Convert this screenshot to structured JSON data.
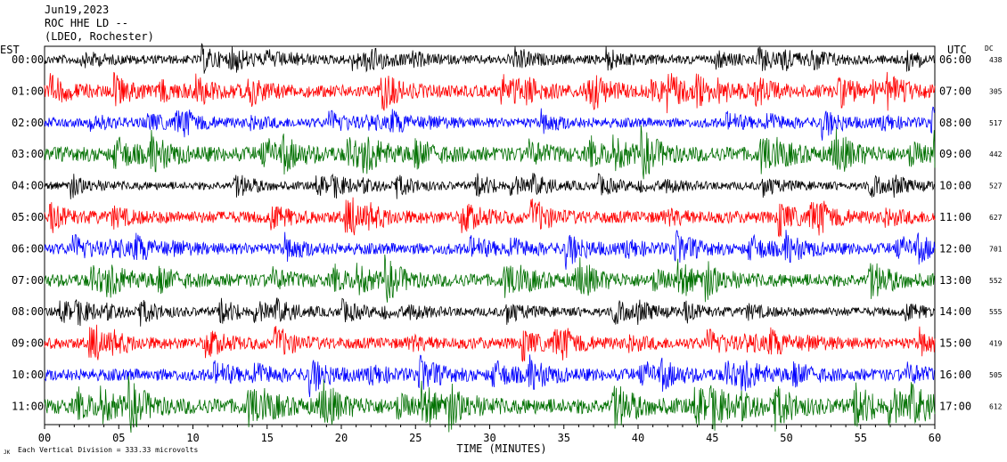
{
  "header": {
    "date": "Jun19,2023",
    "station": "ROC HHE LD --",
    "location": "(LDEO, Rochester)"
  },
  "chart_data": {
    "type": "line",
    "title": "Jun19,2023",
    "left_axis_label": "EST",
    "right_axis_label": "UTC",
    "dc_label": "DC",
    "xlabel": "TIME (MINUTES)",
    "xlim": [
      0,
      60
    ],
    "x_ticks": [
      "00",
      "05",
      "10",
      "15",
      "20",
      "25",
      "30",
      "35",
      "40",
      "45",
      "50",
      "55",
      "60"
    ],
    "scale_note": "Each Vertical Division = 333.33 microvolts",
    "corner_mark": "JK",
    "trace_colors": [
      "#000000",
      "#ff0000",
      "#0000ff",
      "#007000"
    ],
    "rows": [
      {
        "est": "00:00",
        "utc": "06:00",
        "dc": "438",
        "amp": 0.55
      },
      {
        "est": "01:00",
        "utc": "07:00",
        "dc": "305",
        "amp": 0.75
      },
      {
        "est": "02:00",
        "utc": "08:00",
        "dc": "517",
        "amp": 0.6
      },
      {
        "est": "03:00",
        "utc": "09:00",
        "dc": "442",
        "amp": 0.9
      },
      {
        "est": "04:00",
        "utc": "10:00",
        "dc": "527",
        "amp": 0.5
      },
      {
        "est": "05:00",
        "utc": "11:00",
        "dc": "627",
        "amp": 0.75
      },
      {
        "est": "06:00",
        "utc": "12:00",
        "dc": "701",
        "amp": 0.7
      },
      {
        "est": "07:00",
        "utc": "13:00",
        "dc": "552",
        "amp": 0.8
      },
      {
        "est": "08:00",
        "utc": "14:00",
        "dc": "555",
        "amp": 0.55
      },
      {
        "est": "09:00",
        "utc": "15:00",
        "dc": "419",
        "amp": 0.7
      },
      {
        "est": "10:00",
        "utc": "16:00",
        "dc": "505",
        "amp": 0.75
      },
      {
        "est": "11:00",
        "utc": "17:00",
        "dc": "612",
        "amp": 0.95
      }
    ]
  }
}
